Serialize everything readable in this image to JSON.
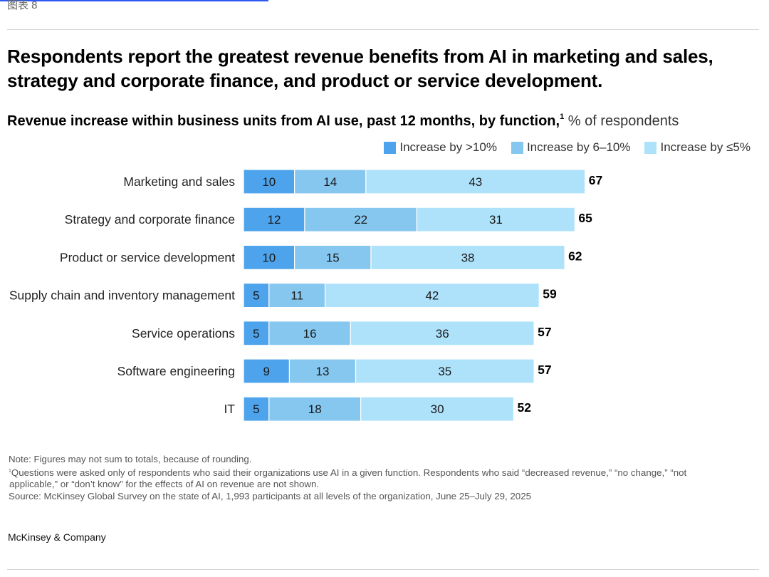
{
  "figure_label": "图表 8",
  "headline": "Respondents report the greatest revenue benefits from AI in marketing and sales, strategy and corporate finance, and product or service development.",
  "subtitle": {
    "main": "Revenue increase within business units from AI use, past 12 months, by function,",
    "footnote_marker": "1",
    "unit": " % of respondents"
  },
  "colors": {
    "gt10": "#4ea4ec",
    "six_to_ten": "#86c7f0",
    "le5": "#aee2fb"
  },
  "chart_data": {
    "type": "bar",
    "orientation": "horizontal",
    "stacked": true,
    "title": "Revenue increase within business units from AI use, past 12 months, by function",
    "xlabel": "",
    "ylabel": "",
    "unit": "% of respondents",
    "grid": false,
    "legend_position": "top-right",
    "categories": [
      "Marketing and sales",
      "Strategy and corporate finance",
      "Product or service development",
      "Supply chain and inventory management",
      "Service operations",
      "Software engineering",
      "IT"
    ],
    "series": [
      {
        "name": "Increase by >10%",
        "color": "#4ea4ec",
        "values": [
          10,
          12,
          10,
          5,
          5,
          9,
          5
        ]
      },
      {
        "name": "Increase by 6–10%",
        "color": "#86c7f0",
        "values": [
          14,
          22,
          15,
          11,
          16,
          13,
          18
        ]
      },
      {
        "name": "Increase by ≤5%",
        "color": "#aee2fb",
        "values": [
          43,
          31,
          38,
          42,
          36,
          35,
          30
        ]
      }
    ],
    "totals": [
      67,
      65,
      62,
      59,
      57,
      57,
      52
    ],
    "xlim": [
      0,
      70
    ]
  },
  "notes": {
    "note": "Note: Figures may not sum to totals, because of rounding.",
    "footnote_marker": "1",
    "footnote_line1": "Questions were asked only of respondents who said their organizations use AI in a given function. Respondents who said “decreased revenue,” “no change,” “not",
    "footnote_line2": "applicable,” or “don’t know” for the effects of AI on revenue are not shown.",
    "source": "Source: McKinsey Global Survey on the state of AI, 1,993 participants at all levels of the organization, June 25–July 29, 2025"
  },
  "brand": "McKinsey & Company"
}
